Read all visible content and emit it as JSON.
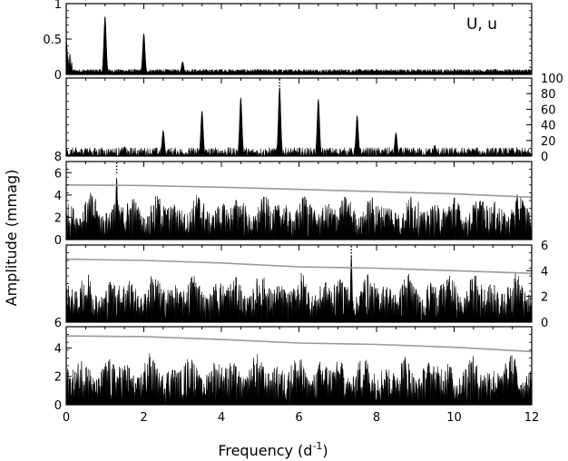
{
  "chart_data": {
    "type": "line",
    "xlabel_main": "Frequency (d",
    "xlabel_sup": "-1",
    "xlabel_close": ")",
    "ylabel": "Amplitude (mmag)",
    "xlim": [
      0,
      12
    ],
    "x_ticks": [
      "0",
      "2",
      "4",
      "6",
      "8",
      "10",
      "12"
    ],
    "panels": [
      {
        "tag": "U, u",
        "ylim": [
          0,
          1
        ],
        "left_ticks": [
          {
            "v": 0,
            "t": "0"
          },
          {
            "v": 0.5,
            "t": "0.5"
          },
          {
            "v": 1,
            "t": "1"
          }
        ],
        "right_ticks": [],
        "kind": "window",
        "peaks": [
          {
            "x": 0.0,
            "a": 0.48
          },
          {
            "x": 1.0,
            "a": 0.82
          },
          {
            "x": 2.0,
            "a": 0.58
          },
          {
            "x": 3.0,
            "a": 0.18
          },
          {
            "x": 4.0,
            "a": 0.07
          },
          {
            "x": 5.0,
            "a": 0.06
          },
          {
            "x": 6.0,
            "a": 0.05
          },
          {
            "x": 7.0,
            "a": 0.06
          },
          {
            "x": 8.0,
            "a": 0.07
          },
          {
            "x": 9.0,
            "a": 0.05
          },
          {
            "x": 10.0,
            "a": 0.05
          },
          {
            "x": 11.0,
            "a": 0.04
          }
        ],
        "noise": 0.06,
        "threshold": null,
        "marker_x": null
      },
      {
        "tag": "",
        "ylim": [
          0,
          100
        ],
        "left_ticks": [
          {
            "v": 0,
            "t": "8"
          }
        ],
        "right_ticks": [
          {
            "v": 0,
            "t": "0"
          },
          {
            "v": 20,
            "t": "20"
          },
          {
            "v": 40,
            "t": "40"
          },
          {
            "v": 60,
            "t": "60"
          },
          {
            "v": 80,
            "t": "80"
          },
          {
            "v": 100,
            "t": "100"
          }
        ],
        "kind": "spectrum",
        "peaks": [
          {
            "x": 0.5,
            "a": 10
          },
          {
            "x": 1.5,
            "a": 12
          },
          {
            "x": 2.5,
            "a": 33
          },
          {
            "x": 3.5,
            "a": 58
          },
          {
            "x": 4.5,
            "a": 75
          },
          {
            "x": 5.5,
            "a": 88
          },
          {
            "x": 6.5,
            "a": 73
          },
          {
            "x": 7.5,
            "a": 52
          },
          {
            "x": 8.5,
            "a": 30
          },
          {
            "x": 9.5,
            "a": 14
          },
          {
            "x": 10.5,
            "a": 9
          },
          {
            "x": 11.5,
            "a": 8
          }
        ],
        "noise": 8,
        "threshold": null,
        "marker_x": 5.5
      },
      {
        "tag": "",
        "ylim": [
          0,
          7
        ],
        "left_ticks": [
          {
            "v": 0,
            "t": "0"
          },
          {
            "v": 2,
            "t": "2"
          },
          {
            "v": 4,
            "t": "4"
          },
          {
            "v": 6,
            "t": "6"
          }
        ],
        "right_ticks": [],
        "kind": "residual",
        "peaks": [
          {
            "x": 1.3,
            "a": 5.6
          }
        ],
        "noise": 3.0,
        "threshold": [
          [
            0,
            4.9
          ],
          [
            2,
            4.85
          ],
          [
            4,
            4.7
          ],
          [
            6,
            4.5
          ],
          [
            8,
            4.3
          ],
          [
            10,
            4.1
          ],
          [
            12,
            3.8
          ]
        ],
        "marker_x": 1.3
      },
      {
        "tag": "",
        "ylim": [
          0,
          6
        ],
        "left_ticks": [
          {
            "v": 0,
            "t": "6"
          }
        ],
        "right_ticks": [
          {
            "v": 0,
            "t": "0"
          },
          {
            "v": 2,
            "t": "2"
          },
          {
            "v": 4,
            "t": "4"
          },
          {
            "v": 6,
            "t": "6"
          }
        ],
        "kind": "residual",
        "peaks": [
          {
            "x": 7.35,
            "a": 5.2
          }
        ],
        "noise": 2.8,
        "threshold": [
          [
            0,
            4.9
          ],
          [
            2,
            4.8
          ],
          [
            4,
            4.6
          ],
          [
            6,
            4.3
          ],
          [
            8,
            4.2
          ],
          [
            10,
            4.0
          ],
          [
            12,
            3.8
          ]
        ],
        "marker_x": 7.35
      },
      {
        "tag": "",
        "ylim": [
          0,
          5.5
        ],
        "left_ticks": [
          {
            "v": 0,
            "t": "0"
          },
          {
            "v": 2,
            "t": "2"
          },
          {
            "v": 4,
            "t": "4"
          }
        ],
        "right_ticks": [],
        "kind": "residual",
        "peaks": [],
        "noise": 2.6,
        "threshold": [
          [
            0,
            4.85
          ],
          [
            2,
            4.8
          ],
          [
            4,
            4.6
          ],
          [
            6,
            4.35
          ],
          [
            8,
            4.25
          ],
          [
            10,
            4.05
          ],
          [
            12,
            3.75
          ]
        ],
        "marker_x": null
      }
    ]
  }
}
